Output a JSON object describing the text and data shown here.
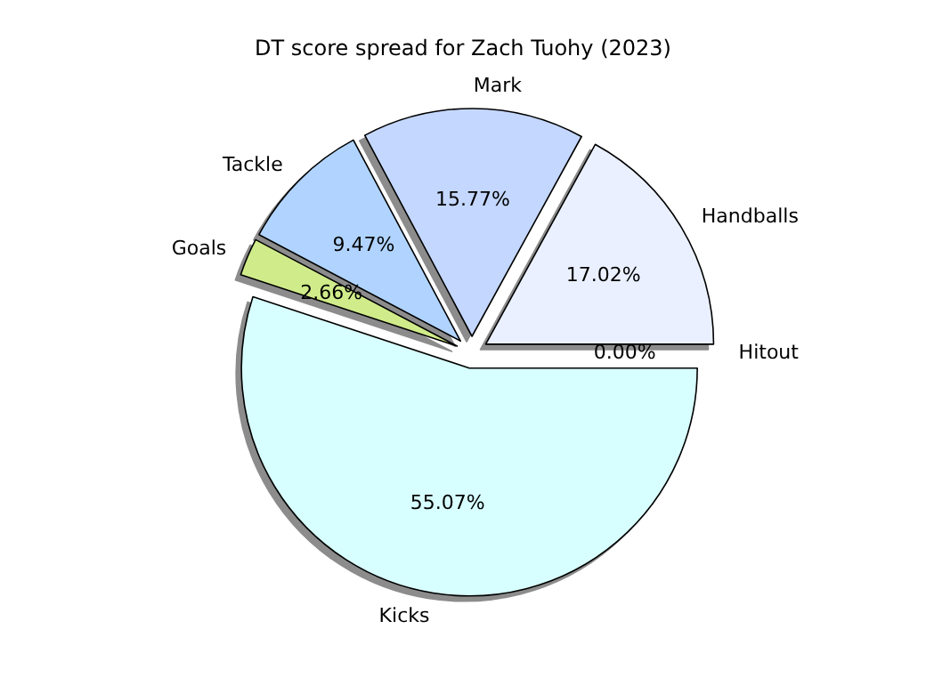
{
  "chart_data": {
    "type": "pie",
    "title": "DT score spread for Zach Tuohy (2023)",
    "categories": [
      "Hitout",
      "Handballs",
      "Mark",
      "Tackle",
      "Goals",
      "Kicks"
    ],
    "values": [
      0.0,
      17.02,
      15.77,
      9.47,
      2.66,
      55.07
    ],
    "colors": [
      "#fff2cc",
      "#eaf0ff",
      "#c4d7ff",
      "#b0d4ff",
      "#d0ec8a",
      "#d8ffff"
    ],
    "value_labels": [
      "0.00%",
      "17.02%",
      "15.77%",
      "9.47%",
      "2.66%",
      "55.07%"
    ]
  }
}
